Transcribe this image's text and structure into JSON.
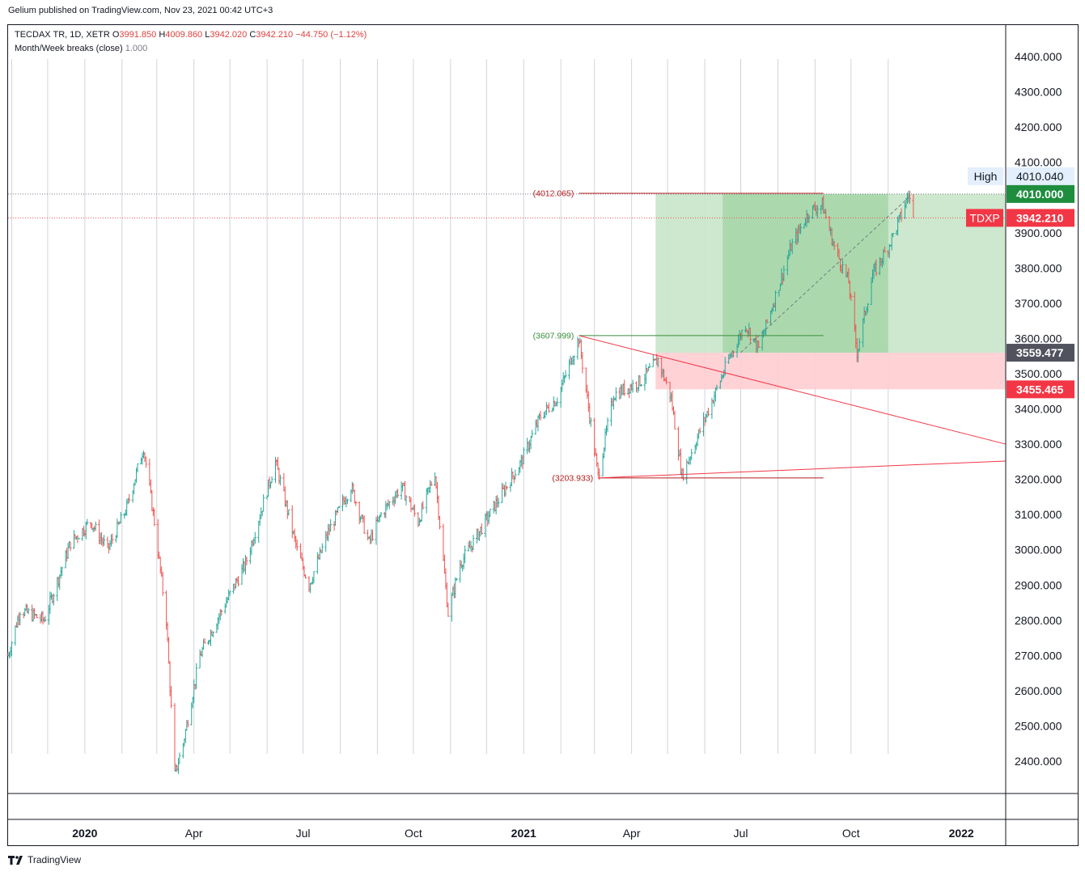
{
  "header": {
    "published": "Gelium published on TradingView.com, Nov 23, 2021 00:42 UTC+3"
  },
  "legend": {
    "symbol": "TECDAX TR, 1D, XETR",
    "o_label": "O",
    "o_value": "3991.850",
    "h_label": "H",
    "h_value": "4009.860",
    "l_label": "L",
    "l_value": "3942.020",
    "c_label": "C",
    "c_value": "3942.210",
    "change": "−44.750 (−1.12%)",
    "indicator_name": "Month/Week breaks (close)",
    "indicator_value": "1.000"
  },
  "footer": {
    "brand": "TradingView",
    "logo_icon": "tradingview-logo-icon"
  },
  "colors": {
    "up": "#26a69a",
    "down": "#ef5350",
    "grid_line": "#d1d4dc",
    "profit_zone": "#c8e6c9",
    "profit_zone_dark": "#a5d6a7",
    "stop_zone": "#ffcdd2",
    "trend_line": "#f23645",
    "level_green": "#388e3c",
    "level_red": "#b71c1c"
  },
  "chart_data": {
    "type": "candlestick",
    "title": "",
    "ylim": [
      2320,
      4450
    ],
    "y_ticks": [
      2400,
      2500,
      2600,
      2700,
      2800,
      2900,
      3000,
      3100,
      3200,
      3300,
      3400,
      3500,
      3600,
      3700,
      3800,
      3900,
      4000,
      4100,
      4200,
      4300,
      4400
    ],
    "y_tick_labels": [
      "2400.000",
      "2500.000",
      "2600.000",
      "2700.000",
      "2800.000",
      "2900.000",
      "3000.000",
      "3100.000",
      "3200.000",
      "3300.000",
      "3400.000",
      "3500.000",
      "3600.000",
      "3700.000",
      "3800.000",
      "3900.000",
      "4000.000",
      "4100.000",
      "4200.000",
      "4300.000",
      "4400.000"
    ],
    "x_labels": [
      {
        "label": "2020",
        "date": "2020-01-01",
        "bold": true
      },
      {
        "label": "Apr",
        "date": "2020-04-01",
        "bold": false
      },
      {
        "label": "Jul",
        "date": "2020-07-01",
        "bold": false
      },
      {
        "label": "Oct",
        "date": "2020-10-01",
        "bold": false
      },
      {
        "label": "2021",
        "date": "2021-01-01",
        "bold": true
      },
      {
        "label": "Apr",
        "date": "2021-04-01",
        "bold": false
      },
      {
        "label": "Jul",
        "date": "2021-07-01",
        "bold": false
      },
      {
        "label": "Oct",
        "date": "2021-10-01",
        "bold": false
      },
      {
        "label": "2022",
        "date": "2022-01-01",
        "bold": true
      }
    ],
    "month_breaks": [
      "2019-11-01",
      "2019-12-01",
      "2020-01-01",
      "2020-02-01",
      "2020-03-01",
      "2020-04-01",
      "2020-05-01",
      "2020-06-01",
      "2020-07-01",
      "2020-08-01",
      "2020-09-01",
      "2020-10-01",
      "2020-11-01",
      "2020-12-01",
      "2021-01-01",
      "2021-02-01",
      "2021-03-01",
      "2021-04-01",
      "2021-05-01",
      "2021-06-01",
      "2021-07-01",
      "2021-08-01",
      "2021-09-01",
      "2021-10-01",
      "2021-11-01"
    ],
    "price_path": [
      [
        "2019-10-29",
        2700
      ],
      [
        "2019-11-08",
        2830
      ],
      [
        "2019-11-28",
        2800
      ],
      [
        "2019-12-20",
        3020
      ],
      [
        "2020-01-06",
        3080
      ],
      [
        "2020-01-20",
        3000
      ],
      [
        "2020-02-05",
        3120
      ],
      [
        "2020-02-19",
        3290
      ],
      [
        "2020-02-28",
        3080
      ],
      [
        "2020-03-09",
        2800
      ],
      [
        "2020-03-16",
        2360
      ],
      [
        "2020-03-23",
        2450
      ],
      [
        "2020-04-06",
        2700
      ],
      [
        "2020-04-20",
        2800
      ],
      [
        "2020-05-14",
        2960
      ],
      [
        "2020-06-08",
        3250
      ],
      [
        "2020-06-26",
        3000
      ],
      [
        "2020-07-06",
        2900
      ],
      [
        "2020-07-22",
        3050
      ],
      [
        "2020-08-10",
        3180
      ],
      [
        "2020-08-25",
        3020
      ],
      [
        "2020-09-04",
        3100
      ],
      [
        "2020-09-21",
        3180
      ],
      [
        "2020-10-05",
        3080
      ],
      [
        "2020-10-19",
        3220
      ],
      [
        "2020-10-30",
        2820
      ],
      [
        "2020-11-09",
        2960
      ],
      [
        "2020-11-30",
        3080
      ],
      [
        "2020-12-14",
        3160
      ],
      [
        "2020-12-30",
        3250
      ],
      [
        "2021-01-15",
        3380
      ],
      [
        "2021-01-29",
        3430
      ],
      [
        "2021-02-16",
        3600
      ],
      [
        "2021-03-04",
        3210
      ],
      [
        "2021-03-17",
        3440
      ],
      [
        "2021-04-09",
        3480
      ],
      [
        "2021-04-23",
        3540
      ],
      [
        "2021-05-04",
        3430
      ],
      [
        "2021-05-13",
        3210
      ],
      [
        "2021-06-02",
        3380
      ],
      [
        "2021-06-21",
        3540
      ],
      [
        "2021-07-05",
        3640
      ],
      [
        "2021-07-16",
        3570
      ],
      [
        "2021-07-30",
        3720
      ],
      [
        "2021-08-12",
        3860
      ],
      [
        "2021-08-27",
        3960
      ],
      [
        "2021-09-07",
        3980
      ],
      [
        "2021-09-17",
        3860
      ],
      [
        "2021-09-29",
        3760
      ],
      [
        "2021-10-06",
        3560
      ],
      [
        "2021-10-19",
        3780
      ],
      [
        "2021-11-01",
        3860
      ],
      [
        "2021-11-12",
        3950
      ],
      [
        "2021-11-18",
        4010
      ],
      [
        "2021-11-22",
        3942
      ]
    ],
    "last_bar": {
      "open": 3991.85,
      "high": 4009.86,
      "low": 3942.02,
      "close": 3942.21,
      "change": -44.75,
      "change_pct": -1.12
    },
    "levels": [
      {
        "label": "(4012.065)",
        "value": 4012.065,
        "from": "2021-02-16",
        "to": "2021-09-08",
        "color": "level_red"
      },
      {
        "label": "(3607.999)",
        "value": 3607.999,
        "from": "2021-02-16",
        "to": "2021-09-08",
        "color": "level_green"
      },
      {
        "label": "(3203.933)",
        "value": 3203.933,
        "from": "2021-03-04",
        "to": "2021-09-08",
        "color": "level_red"
      }
    ],
    "trend_lines": [
      {
        "from": [
          "2021-02-16",
          3608
        ],
        "to": [
          "2022-02-07",
          3300
        ]
      },
      {
        "from": [
          "2021-03-04",
          3204
        ],
        "to": [
          "2022-02-07",
          3252
        ]
      }
    ],
    "dashed_line": {
      "from": [
        "2021-07-01",
        3560
      ],
      "to": [
        "2021-11-18",
        4000
      ]
    },
    "position_tool": {
      "start": "2021-04-21",
      "end": "2022-02-07",
      "target": 4010.0,
      "entry": 3559.477,
      "stop": 3455.465,
      "inner_start": "2021-06-16",
      "inner_end": "2021-11-01"
    },
    "price_tags": [
      {
        "text": "4010.040",
        "prefix": "High",
        "value": 4010.04,
        "style": "high"
      },
      {
        "text": "4010.000",
        "prefix": "",
        "value": 4010.0,
        "style": "green"
      },
      {
        "text": "3942.210",
        "prefix": "TDXP",
        "value": 3942.21,
        "style": "red"
      },
      {
        "text": "3559.477",
        "prefix": "",
        "value": 3559.477,
        "style": "dark"
      },
      {
        "text": "3455.465",
        "prefix": "",
        "value": 3455.465,
        "style": "red"
      }
    ],
    "grid": "month-breaks"
  }
}
